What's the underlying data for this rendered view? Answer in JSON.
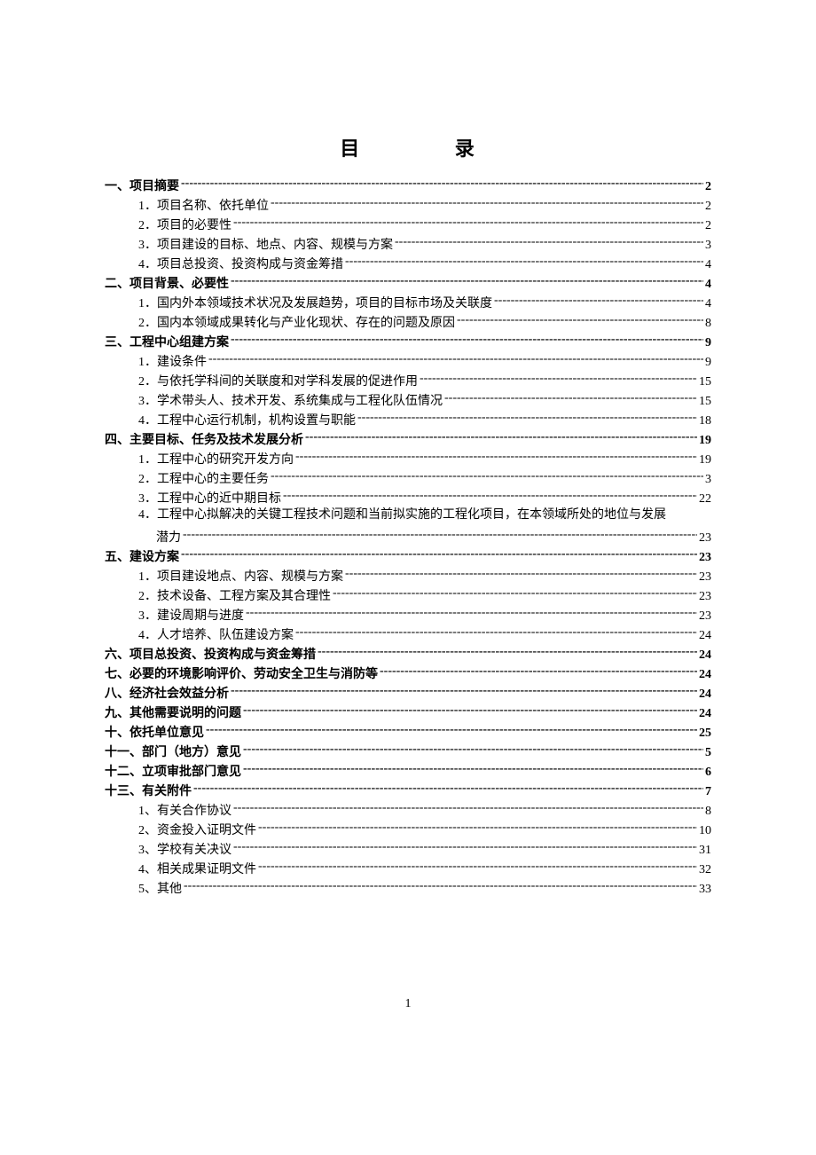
{
  "title_left": "目",
  "title_right": "录",
  "page_number": "1",
  "toc": [
    {
      "label": "一、项目摘要",
      "page": "2",
      "indent": 0,
      "bold": true
    },
    {
      "label": "1．项目名称、依托单位",
      "page": "2",
      "indent": 1
    },
    {
      "label": "2．项目的必要性",
      "page": "2",
      "indent": 1
    },
    {
      "label": "3．项目建设的目标、地点、内容、规模与方案",
      "page": "3",
      "indent": 1
    },
    {
      "label": "4．项目总投资、投资构成与资金筹措",
      "page": "4",
      "indent": 1
    },
    {
      "label": "二、项目背景、必要性",
      "page": "4",
      "indent": 0,
      "bold": true
    },
    {
      "label": "1．国内外本领域技术状况及发展趋势，项目的目标市场及关联度",
      "page": "4",
      "indent": 1
    },
    {
      "label": "2．国内本领域成果转化与产业化现状、存在的问题及原因",
      "page": "8",
      "indent": 1
    },
    {
      "label": "三、工程中心组建方案",
      "page": "9",
      "indent": 0,
      "bold": true
    },
    {
      "label": "1．建设条件",
      "page": "9",
      "indent": 1
    },
    {
      "label": "2．与依托学科间的关联度和对学科发展的促进作用 ",
      "page": "15",
      "indent": 1
    },
    {
      "label": "3．学术带头人、技术开发、系统集成与工程化队伍情况 ",
      "page": "15",
      "indent": 1
    },
    {
      "label": "4．工程中心运行机制，机构设置与职能 ",
      "page": "18",
      "indent": 1
    },
    {
      "label": "四、主要目标、任务及技术发展分析 ",
      "page": "19",
      "indent": 0,
      "bold": true
    },
    {
      "label": "1．工程中心的研究开发方向 ",
      "page": "19",
      "indent": 1
    },
    {
      "label": "2．工程中心的主要任务",
      "page": "3",
      "indent": 1
    },
    {
      "label": "3．工程中心的近中期目标 ",
      "page": "22",
      "indent": 1
    },
    {
      "label": "4．工程中心拟解决的关键工程技术问题和当前拟实施的工程化项目，在本领域所处的地位与发展",
      "page": "",
      "indent": 1,
      "noleader": true
    },
    {
      "label": "潜力 ",
      "page": "23",
      "indent": 2
    },
    {
      "label": "五、建设方案 ",
      "page": "23",
      "indent": 0,
      "bold": true
    },
    {
      "label": "1．项目建设地点、内容、规模与方案 ",
      "page": "23",
      "indent": 1
    },
    {
      "label": "2．技术设备、工程方案及其合理性 ",
      "page": "23",
      "indent": 1
    },
    {
      "label": "3．建设周期与进度 ",
      "page": "23",
      "indent": 1
    },
    {
      "label": "4．人才培养、队伍建设方案 ",
      "page": "24",
      "indent": 1
    },
    {
      "label": "六、项目总投资、投资构成与资金筹措 ",
      "page": "24",
      "indent": 0,
      "bold": true
    },
    {
      "label": "七、必要的环境影响评价、劳动安全卫生与消防等 ",
      "page": "24",
      "indent": 0,
      "bold": true
    },
    {
      "label": "八、经济社会效益分析 ",
      "page": "24",
      "indent": 0,
      "bold": true
    },
    {
      "label": "九、其他需要说明的问题 ",
      "page": "24",
      "indent": 0,
      "bold": true
    },
    {
      "label": "十、依托单位意见 ",
      "page": "25",
      "indent": 0,
      "bold": true
    },
    {
      "label": "十一、部门（地方）意见",
      "page": "5",
      "indent": 0,
      "bold": true
    },
    {
      "label": "十二、立项审批部门意见",
      "page": "6",
      "indent": 0,
      "bold": true
    },
    {
      "label": "十三、有关附件",
      "page": "7",
      "indent": 0,
      "bold": true
    },
    {
      "label": "1、有关合作协议",
      "page": "8",
      "indent": 1
    },
    {
      "label": "2、资金投入证明文件 ",
      "page": "10",
      "indent": 1
    },
    {
      "label": "3、学校有关决议 ",
      "page": "31",
      "indent": 1
    },
    {
      "label": "4、相关成果证明文件 ",
      "page": "32",
      "indent": 1
    },
    {
      "label": "5、其他 ",
      "page": "33",
      "indent": 1
    }
  ]
}
